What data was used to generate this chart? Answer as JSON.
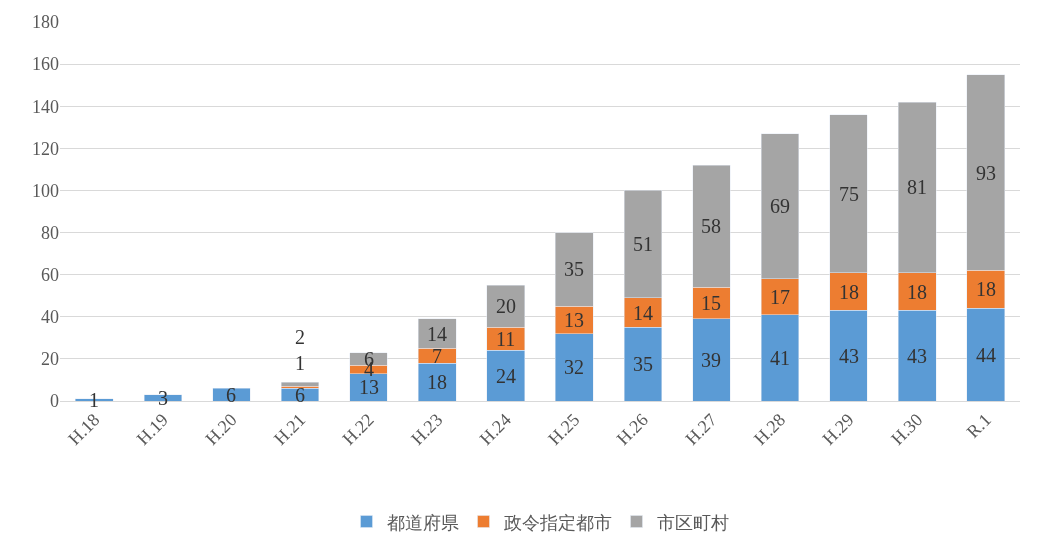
{
  "chart_data": {
    "type": "bar",
    "stacked": true,
    "categories": [
      "H.18",
      "H.19",
      "H.20",
      "H.21",
      "H.22",
      "H.23",
      "H.24",
      "H.25",
      "H.26",
      "H.27",
      "H.28",
      "H.29",
      "H.30",
      "R.1"
    ],
    "series": [
      {
        "name": "都道府県",
        "color": "#5b9bd5",
        "values": [
          1,
          3,
          6,
          6,
          13,
          18,
          24,
          32,
          35,
          39,
          41,
          43,
          43,
          44
        ]
      },
      {
        "name": "政令指定都市",
        "color": "#ed7d31",
        "values": [
          null,
          null,
          null,
          1,
          4,
          7,
          11,
          13,
          14,
          15,
          17,
          18,
          18,
          18
        ]
      },
      {
        "name": "市区町村",
        "color": "#a5a5a5",
        "values": [
          null,
          null,
          null,
          2,
          6,
          14,
          20,
          35,
          51,
          58,
          69,
          75,
          81,
          93
        ]
      }
    ],
    "data_labels": true,
    "ylim": [
      0,
      180
    ],
    "yticks": [
      0,
      20,
      40,
      60,
      80,
      100,
      120,
      140,
      160,
      180
    ],
    "grid": "y",
    "legend": "bottom"
  }
}
